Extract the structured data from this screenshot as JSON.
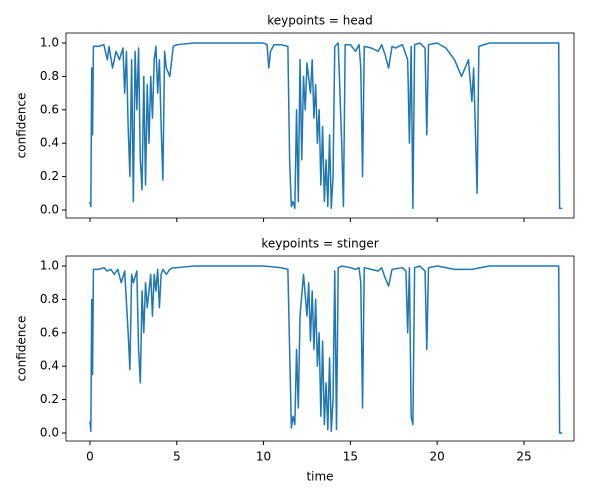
{
  "chart_data": [
    {
      "type": "line",
      "title": "keypoints = head",
      "y_label": "confidence",
      "xlim": [
        -1.38,
        27.88
      ],
      "xticks": [
        0,
        5,
        10,
        15,
        20,
        25
      ],
      "ylim": [
        -0.048,
        1.06
      ],
      "yticks": [
        0.0,
        0.2,
        0.4,
        0.6,
        0.8,
        1.0
      ],
      "series": [
        {
          "color": "#1f77b4",
          "x": [
            0,
            0.05,
            0.1,
            0.15,
            0.2,
            0.5,
            0.8,
            1.0,
            1.1,
            1.3,
            1.5,
            1.7,
            1.9,
            2.0,
            2.1,
            2.2,
            2.3,
            2.4,
            2.5,
            2.6,
            2.7,
            2.8,
            2.9,
            3.0,
            3.1,
            3.2,
            3.3,
            3.4,
            3.5,
            3.6,
            3.7,
            3.8,
            3.9,
            4.0,
            4.1,
            4.2,
            4.3,
            4.4,
            4.6,
            4.8,
            5.0,
            6,
            8,
            10,
            10.2,
            10.3,
            10.4,
            10.6,
            11,
            11.4,
            11.5,
            11.6,
            11.7,
            11.8,
            11.9,
            12.0,
            12.1,
            12.2,
            12.3,
            12.4,
            12.5,
            12.7,
            12.8,
            12.9,
            13.0,
            13.1,
            13.2,
            13.3,
            13.4,
            13.5,
            13.6,
            13.7,
            13.8,
            13.9,
            14.0,
            14.1,
            14.3,
            14.5,
            14.6,
            14.7,
            15,
            15.3,
            15.5,
            15.6,
            15.7,
            15.8,
            16.2,
            16.6,
            16.8,
            17,
            17.2,
            17.4,
            17.6,
            18,
            18.3,
            18.4,
            18.5,
            18.6,
            18.7,
            19,
            19.3,
            19.4,
            19.5,
            20,
            20.5,
            21,
            21.2,
            21.4,
            21.6,
            21.8,
            22.0,
            22.1,
            22.3,
            22.4,
            23,
            25,
            27,
            27.05,
            27.2
          ],
          "values": [
            0.05,
            0.02,
            0.85,
            0.45,
            0.98,
            0.98,
            0.99,
            0.9,
            0.98,
            0.85,
            0.95,
            0.9,
            0.97,
            0.7,
            0.95,
            0.5,
            0.2,
            0.9,
            0.05,
            0.95,
            0.6,
            0.97,
            0.3,
            0.12,
            0.8,
            0.15,
            0.75,
            0.4,
            0.8,
            0.55,
            0.9,
            0.98,
            0.7,
            0.9,
            0.5,
            0.18,
            0.95,
            0.85,
            0.8,
            0.98,
            0.99,
            1.0,
            1.0,
            1.0,
            0.99,
            0.85,
            0.95,
            0.99,
            0.99,
            0.98,
            0.3,
            0.02,
            0.05,
            0.01,
            0.6,
            0.05,
            0.9,
            0.3,
            0.8,
            0.6,
            0.88,
            0.7,
            0.9,
            0.55,
            0.75,
            0.4,
            0.6,
            0.15,
            0.5,
            0.05,
            0.3,
            0.02,
            0.45,
            0.01,
            0.2,
            0.98,
            1.0,
            0.4,
            0.02,
            0.99,
            0.99,
            0.95,
            0.99,
            0.85,
            0.2,
            0.98,
            0.97,
            0.95,
            0.99,
            0.93,
            0.85,
            0.98,
            0.97,
            0.99,
            0.9,
            0.4,
            0.98,
            0.01,
            0.99,
            1.0,
            0.97,
            0.45,
            0.99,
            1.0,
            0.97,
            0.9,
            0.85,
            0.8,
            0.85,
            0.9,
            0.65,
            0.85,
            0.1,
            0.98,
            1.0,
            1.0,
            1.0,
            0.01,
            0.01
          ]
        }
      ]
    },
    {
      "type": "line",
      "title": "keypoints = stinger",
      "x_label": "time",
      "y_label": "confidence",
      "xlim": [
        -1.38,
        27.88
      ],
      "xticks": [
        0,
        5,
        10,
        15,
        20,
        25
      ],
      "ylim": [
        -0.048,
        1.06
      ],
      "yticks": [
        0.0,
        0.2,
        0.4,
        0.6,
        0.8,
        1.0
      ],
      "series": [
        {
          "color": "#1f77b4",
          "x": [
            0,
            0.05,
            0.1,
            0.15,
            0.2,
            0.5,
            0.8,
            1.0,
            1.2,
            1.4,
            1.6,
            1.8,
            2.0,
            2.2,
            2.3,
            2.4,
            2.5,
            2.7,
            2.8,
            2.9,
            3.0,
            3.1,
            3.2,
            3.3,
            3.5,
            3.6,
            3.7,
            3.8,
            3.9,
            4.0,
            4.1,
            4.2,
            4.4,
            4.6,
            4.8,
            5.0,
            6,
            8,
            10,
            11,
            11.4,
            11.5,
            11.6,
            11.7,
            11.8,
            11.9,
            12.0,
            12.1,
            12.3,
            12.5,
            12.6,
            12.7,
            12.8,
            12.9,
            13.0,
            13.1,
            13.2,
            13.3,
            13.4,
            13.5,
            13.6,
            13.7,
            13.8,
            13.9,
            14.0,
            14.1,
            14.2,
            14.3,
            14.5,
            15,
            15.3,
            15.5,
            15.6,
            15.7,
            15.8,
            16.2,
            16.6,
            16.8,
            17,
            17.2,
            17.4,
            18,
            18.2,
            18.3,
            18.4,
            18.5,
            18.6,
            18.7,
            19,
            19.3,
            19.4,
            19.5,
            20,
            21,
            22,
            23,
            25,
            27,
            27.05,
            27.2
          ],
          "values": [
            0.07,
            0.01,
            0.8,
            0.35,
            0.98,
            0.98,
            0.99,
            0.97,
            0.98,
            0.95,
            0.98,
            0.9,
            0.97,
            0.6,
            0.38,
            0.95,
            0.9,
            0.97,
            0.5,
            0.3,
            0.85,
            0.6,
            0.9,
            0.75,
            0.95,
            0.7,
            0.95,
            0.85,
            0.98,
            0.75,
            0.95,
            0.98,
            0.95,
            0.98,
            0.99,
            0.99,
            1.0,
            1.0,
            1.0,
            0.99,
            0.98,
            0.5,
            0.03,
            0.1,
            0.05,
            0.5,
            0.15,
            0.7,
            0.95,
            0.7,
            0.9,
            0.55,
            0.85,
            0.5,
            0.8,
            0.4,
            0.6,
            0.1,
            0.55,
            0.05,
            0.3,
            0.02,
            0.45,
            0.01,
            0.2,
            0.97,
            0.02,
            0.99,
            1.0,
            0.99,
            0.98,
            0.99,
            0.9,
            0.15,
            0.99,
            0.98,
            0.97,
            0.99,
            0.93,
            0.88,
            0.98,
            0.99,
            0.97,
            0.6,
            0.99,
            0.1,
            0.05,
            0.99,
            1.0,
            0.97,
            0.5,
            0.99,
            1.0,
            0.98,
            0.98,
            1.0,
            1.0,
            1.0,
            0.0,
            0.0
          ]
        }
      ]
    }
  ]
}
